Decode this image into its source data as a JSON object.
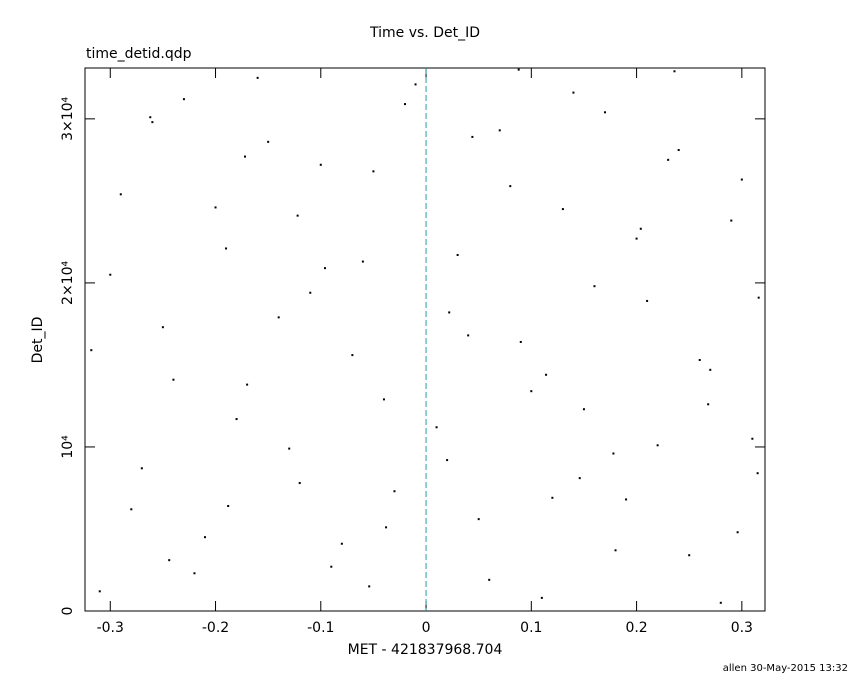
{
  "chart_data": {
    "type": "scatter",
    "title": "Time vs. Det_ID",
    "subtitle": "time_detid.qdp",
    "x_label": "MET - 421837968.704",
    "y_label": "Det_ID",
    "footer": "allen 30-May-2015 13:32",
    "xlim": [
      -0.324,
      0.322
    ],
    "ylim": [
      0,
      33100
    ],
    "xticks": [
      -0.3,
      -0.2,
      -0.1,
      0,
      0.1,
      0.2,
      0.3
    ],
    "yticks": [
      0,
      {
        "value": 10000,
        "label": "10⁴"
      },
      {
        "value": 20000,
        "label": "2×10⁴"
      },
      {
        "value": 30000,
        "label": "3×10⁴"
      }
    ],
    "reference_line_x": 0,
    "reference_line_color": "#2a9d9d",
    "series": [
      {
        "color": "#000000",
        "x": [
          -0.31,
          -0.29,
          -0.27,
          -0.25,
          -0.23,
          -0.21,
          -0.19,
          -0.17,
          -0.15,
          -0.13,
          -0.11,
          -0.09,
          -0.07,
          -0.05,
          -0.03,
          -0.01,
          0.01,
          0.03,
          0.05,
          0.07,
          0.09,
          0.11,
          0.13,
          0.15,
          0.17,
          0.19,
          0.21,
          0.23,
          0.25,
          0.27,
          0.29,
          0.31,
          -0.3,
          -0.28,
          -0.26,
          -0.24,
          -0.22,
          -0.2,
          -0.18,
          -0.16,
          -0.14,
          -0.12,
          -0.1,
          -0.08,
          -0.06,
          -0.04,
          -0.02,
          0.02,
          0.04,
          0.06,
          0.08,
          0.1,
          0.12,
          0.14,
          0.16,
          0.18,
          0.2,
          0.22,
          0.24,
          0.26,
          0.28,
          0.3,
          0.315,
          -0.318,
          -0.244,
          -0.172,
          -0.096,
          -0.038,
          0.022,
          0.088,
          0.146,
          0.204,
          0.268,
          0.316,
          -0.262,
          -0.188,
          -0.122,
          -0.054,
          0.044,
          0.114,
          0.178,
          0.236,
          0.296
        ],
        "y": [
          1200,
          25400,
          8700,
          17300,
          31200,
          4500,
          22100,
          13800,
          28600,
          9900,
          19400,
          2700,
          15600,
          26800,
          7300,
          32100,
          11200,
          21700,
          5600,
          29300,
          16400,
          800,
          24500,
          12300,
          30400,
          6800,
          18900,
          27500,
          3400,
          14700,
          23800,
          10500,
          20500,
          6200,
          29800,
          14100,
          2300,
          24600,
          11700,
          32500,
          17900,
          7800,
          27200,
          4100,
          21300,
          12900,
          30900,
          9200,
          16800,
          1900,
          25900,
          13400,
          6900,
          31600,
          19800,
          3700,
          22700,
          10100,
          28100,
          15300,
          500,
          26300,
          8400,
          15900,
          3100,
          27700,
          20900,
          5100,
          18200,
          33000,
          8100,
          23300,
          12600,
          19100,
          30100,
          6400,
          24100,
          1500,
          28900,
          14400,
          9600,
          32900,
          4800
        ]
      }
    ]
  }
}
